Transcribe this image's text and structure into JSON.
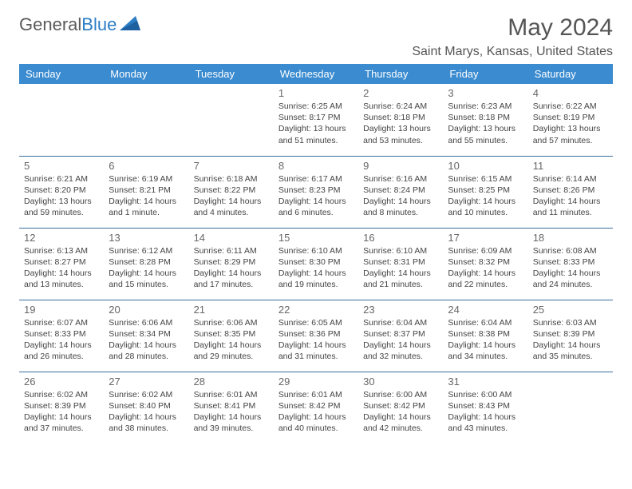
{
  "logo": {
    "text1": "General",
    "text2": "Blue"
  },
  "title": "May 2024",
  "location": "Saint Marys, Kansas, United States",
  "colors": {
    "header_bg": "#3a8bd0",
    "header_text": "#ffffff",
    "row_border": "#3a6fa0",
    "logo_gray": "#5a5a5a",
    "logo_blue": "#2d7dc6",
    "title_color": "#555555",
    "text_color": "#444444"
  },
  "weekdays": [
    "Sunday",
    "Monday",
    "Tuesday",
    "Wednesday",
    "Thursday",
    "Friday",
    "Saturday"
  ],
  "weeks": [
    [
      null,
      null,
      null,
      {
        "n": "1",
        "sr": "6:25 AM",
        "ss": "8:17 PM",
        "dl": "13 hours and 51 minutes."
      },
      {
        "n": "2",
        "sr": "6:24 AM",
        "ss": "8:18 PM",
        "dl": "13 hours and 53 minutes."
      },
      {
        "n": "3",
        "sr": "6:23 AM",
        "ss": "8:18 PM",
        "dl": "13 hours and 55 minutes."
      },
      {
        "n": "4",
        "sr": "6:22 AM",
        "ss": "8:19 PM",
        "dl": "13 hours and 57 minutes."
      }
    ],
    [
      {
        "n": "5",
        "sr": "6:21 AM",
        "ss": "8:20 PM",
        "dl": "13 hours and 59 minutes."
      },
      {
        "n": "6",
        "sr": "6:19 AM",
        "ss": "8:21 PM",
        "dl": "14 hours and 1 minute."
      },
      {
        "n": "7",
        "sr": "6:18 AM",
        "ss": "8:22 PM",
        "dl": "14 hours and 4 minutes."
      },
      {
        "n": "8",
        "sr": "6:17 AM",
        "ss": "8:23 PM",
        "dl": "14 hours and 6 minutes."
      },
      {
        "n": "9",
        "sr": "6:16 AM",
        "ss": "8:24 PM",
        "dl": "14 hours and 8 minutes."
      },
      {
        "n": "10",
        "sr": "6:15 AM",
        "ss": "8:25 PM",
        "dl": "14 hours and 10 minutes."
      },
      {
        "n": "11",
        "sr": "6:14 AM",
        "ss": "8:26 PM",
        "dl": "14 hours and 11 minutes."
      }
    ],
    [
      {
        "n": "12",
        "sr": "6:13 AM",
        "ss": "8:27 PM",
        "dl": "14 hours and 13 minutes."
      },
      {
        "n": "13",
        "sr": "6:12 AM",
        "ss": "8:28 PM",
        "dl": "14 hours and 15 minutes."
      },
      {
        "n": "14",
        "sr": "6:11 AM",
        "ss": "8:29 PM",
        "dl": "14 hours and 17 minutes."
      },
      {
        "n": "15",
        "sr": "6:10 AM",
        "ss": "8:30 PM",
        "dl": "14 hours and 19 minutes."
      },
      {
        "n": "16",
        "sr": "6:10 AM",
        "ss": "8:31 PM",
        "dl": "14 hours and 21 minutes."
      },
      {
        "n": "17",
        "sr": "6:09 AM",
        "ss": "8:32 PM",
        "dl": "14 hours and 22 minutes."
      },
      {
        "n": "18",
        "sr": "6:08 AM",
        "ss": "8:33 PM",
        "dl": "14 hours and 24 minutes."
      }
    ],
    [
      {
        "n": "19",
        "sr": "6:07 AM",
        "ss": "8:33 PM",
        "dl": "14 hours and 26 minutes."
      },
      {
        "n": "20",
        "sr": "6:06 AM",
        "ss": "8:34 PM",
        "dl": "14 hours and 28 minutes."
      },
      {
        "n": "21",
        "sr": "6:06 AM",
        "ss": "8:35 PM",
        "dl": "14 hours and 29 minutes."
      },
      {
        "n": "22",
        "sr": "6:05 AM",
        "ss": "8:36 PM",
        "dl": "14 hours and 31 minutes."
      },
      {
        "n": "23",
        "sr": "6:04 AM",
        "ss": "8:37 PM",
        "dl": "14 hours and 32 minutes."
      },
      {
        "n": "24",
        "sr": "6:04 AM",
        "ss": "8:38 PM",
        "dl": "14 hours and 34 minutes."
      },
      {
        "n": "25",
        "sr": "6:03 AM",
        "ss": "8:39 PM",
        "dl": "14 hours and 35 minutes."
      }
    ],
    [
      {
        "n": "26",
        "sr": "6:02 AM",
        "ss": "8:39 PM",
        "dl": "14 hours and 37 minutes."
      },
      {
        "n": "27",
        "sr": "6:02 AM",
        "ss": "8:40 PM",
        "dl": "14 hours and 38 minutes."
      },
      {
        "n": "28",
        "sr": "6:01 AM",
        "ss": "8:41 PM",
        "dl": "14 hours and 39 minutes."
      },
      {
        "n": "29",
        "sr": "6:01 AM",
        "ss": "8:42 PM",
        "dl": "14 hours and 40 minutes."
      },
      {
        "n": "30",
        "sr": "6:00 AM",
        "ss": "8:42 PM",
        "dl": "14 hours and 42 minutes."
      },
      {
        "n": "31",
        "sr": "6:00 AM",
        "ss": "8:43 PM",
        "dl": "14 hours and 43 minutes."
      },
      null
    ]
  ],
  "labels": {
    "sunrise": "Sunrise: ",
    "sunset": "Sunset: ",
    "daylight": "Daylight: "
  }
}
